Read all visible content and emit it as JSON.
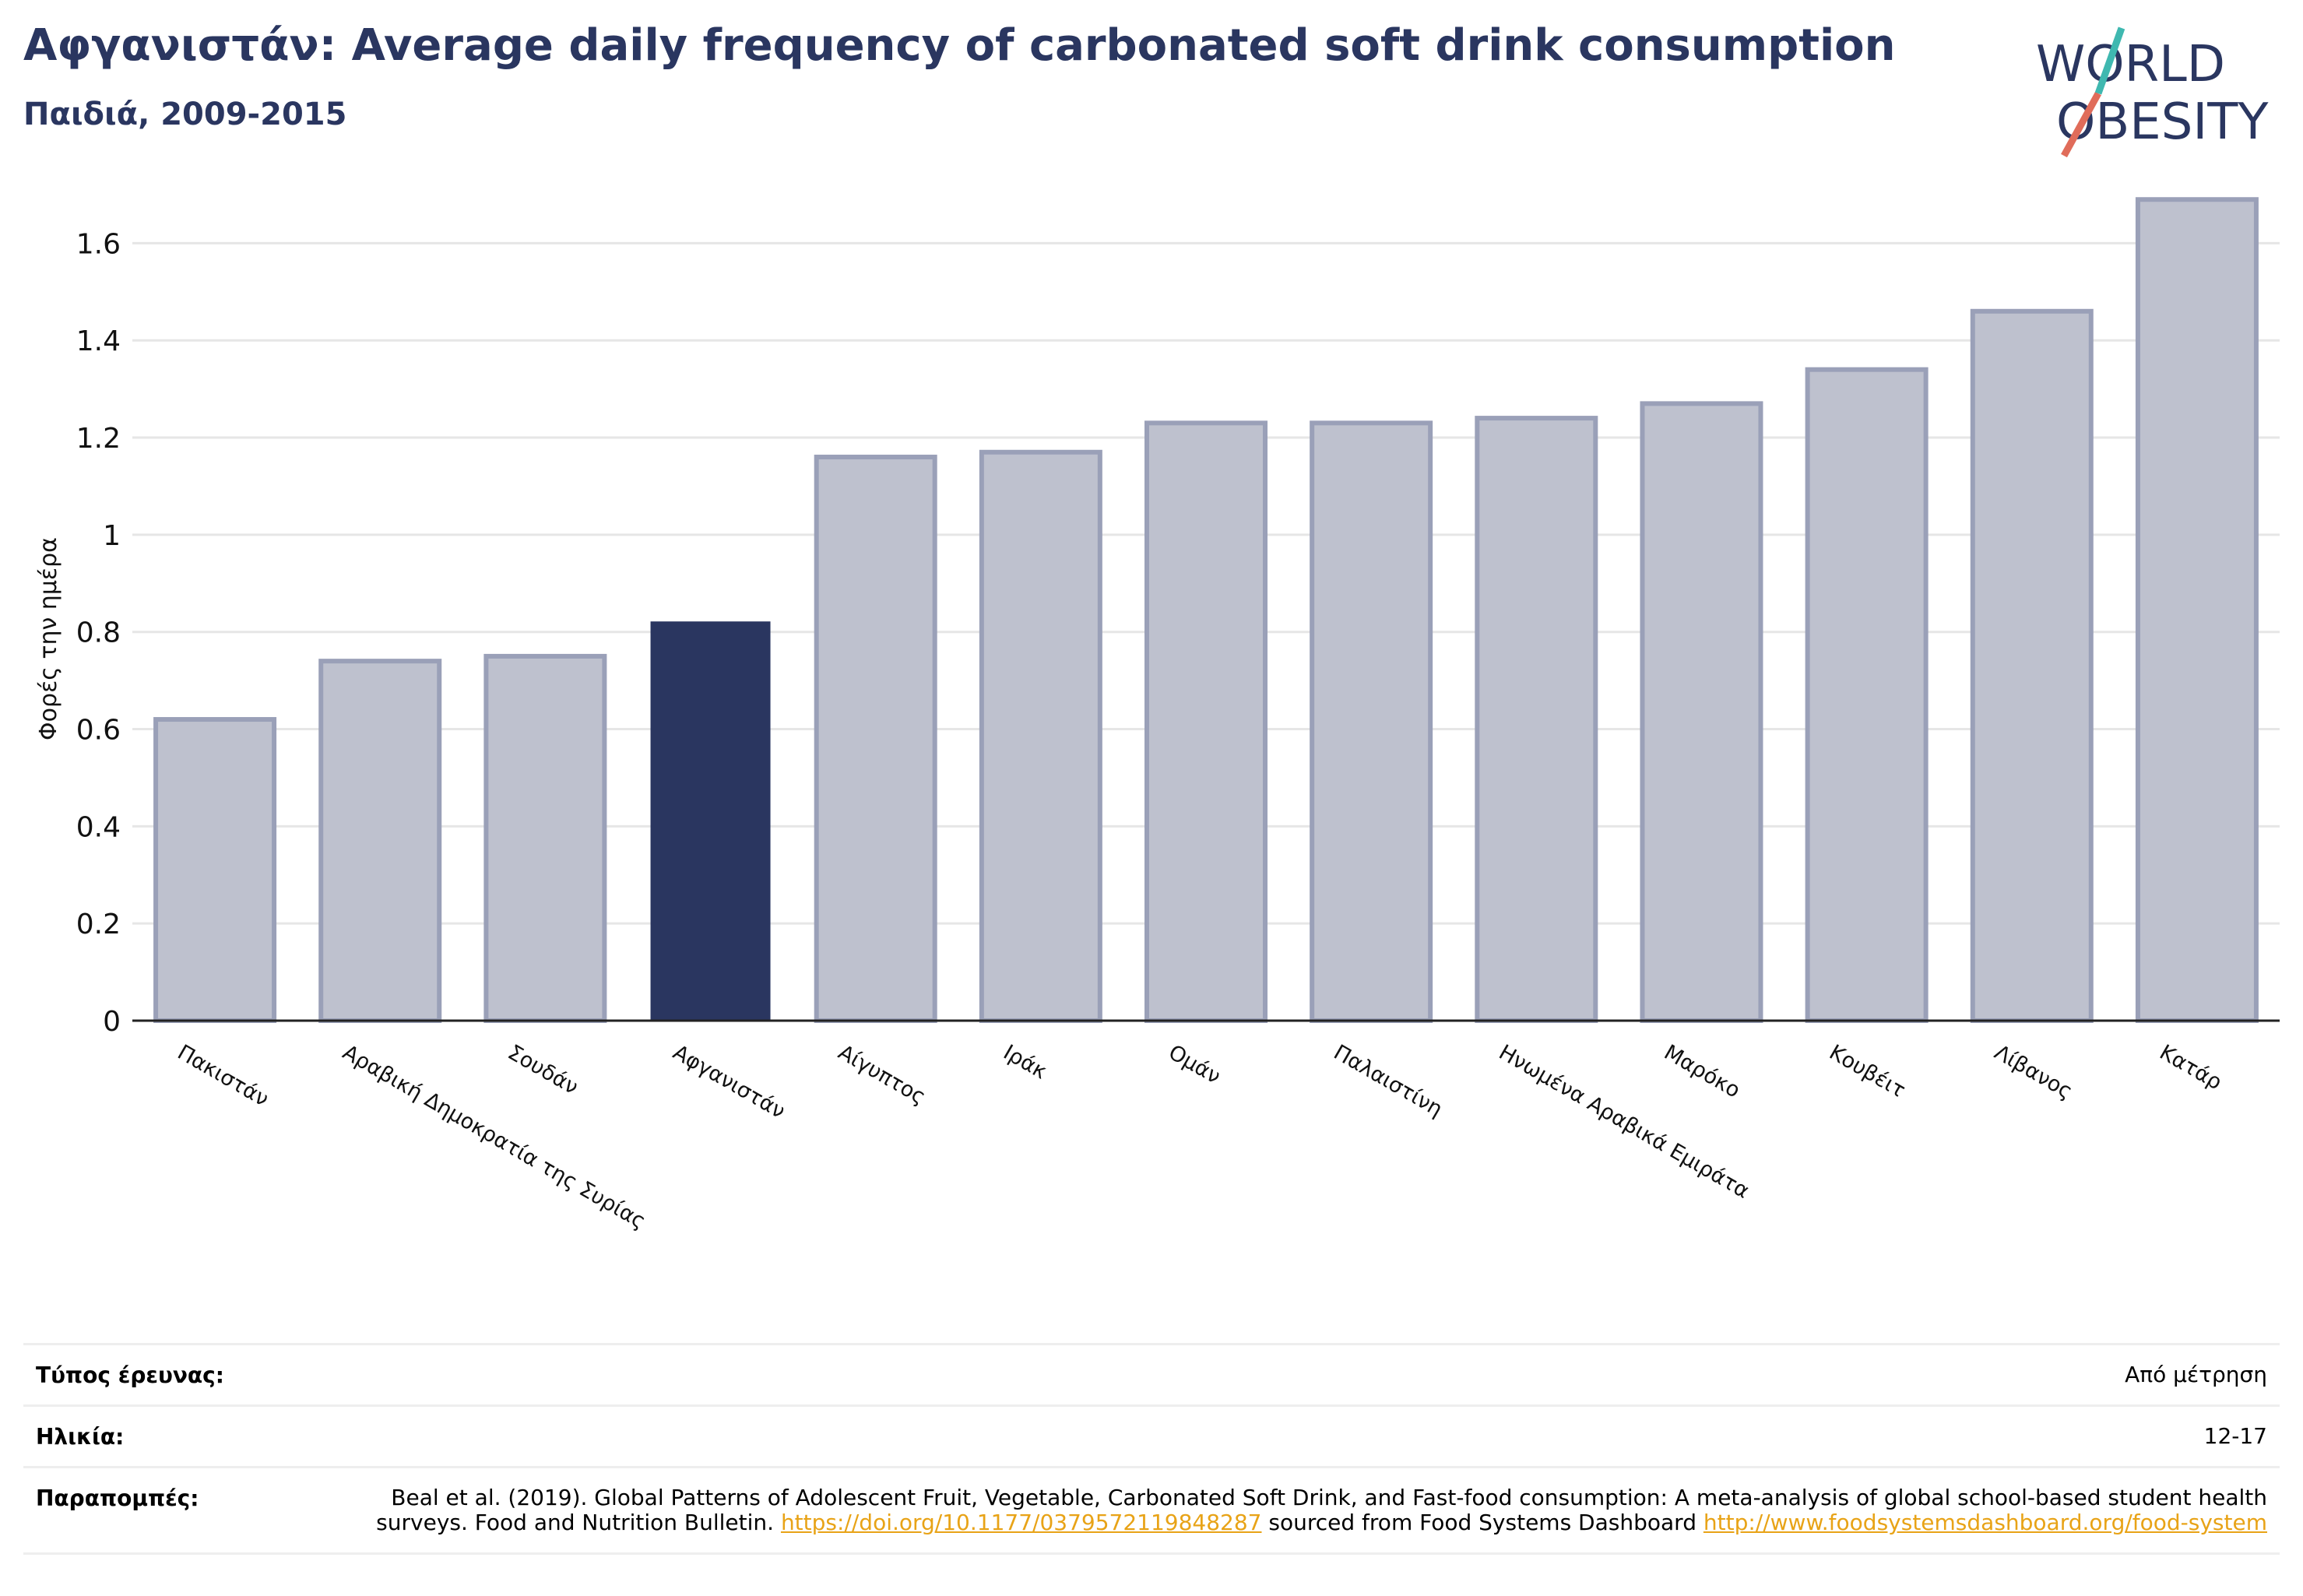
{
  "header": {
    "title": "Αφγανιστάν: Average daily frequency of carbonated soft drink consumption",
    "subtitle": "Παιδιά, 2009-2015"
  },
  "logo": {
    "line1": "WORLD",
    "line2": "OBESITY"
  },
  "colors": {
    "highlight": "#2a3660",
    "bar_fill": "#bec1ce",
    "bar_stroke": "#9aa0b8",
    "title": "#2a3660",
    "link": "#e8a317",
    "logo_teal": "#3fb8b0",
    "logo_coral": "#e06c5a"
  },
  "chart_data": {
    "type": "bar",
    "title": "Αφγανιστάν: Average daily frequency of carbonated soft drink consumption",
    "subtitle": "Παιδιά, 2009-2015",
    "ylabel": "Φορές την ημέρα",
    "ylim": [
      0,
      1.7
    ],
    "yticks": [
      0,
      0.2,
      0.4,
      0.6,
      0.8,
      1,
      1.2,
      1.4,
      1.6
    ],
    "ytick_labels": [
      "0",
      "0.2",
      "0.4",
      "0.6",
      "0.8",
      "1",
      "1.2",
      "1.4",
      "1.6"
    ],
    "grid": true,
    "categories": [
      "Πακιστάν",
      "Αραβική Δημοκρατία της Συρίας",
      "Σουδάν",
      "Αφγανιστάν",
      "Αίγυπτος",
      "Ιράκ",
      "Ομάν",
      "Παλαιστίνη",
      "Ηνωμένα Αραβικά Εμιράτα",
      "Μαρόκο",
      "Κουβέιτ",
      "Λίβανος",
      "Κατάρ"
    ],
    "values": [
      0.62,
      0.74,
      0.75,
      0.82,
      1.16,
      1.17,
      1.23,
      1.23,
      1.24,
      1.27,
      1.34,
      1.46,
      1.69
    ],
    "highlight": "Αφγανιστάν"
  },
  "meta": {
    "survey_type_label": "Τύπος έρευνας:",
    "survey_type_value": "Από μέτρηση",
    "age_label": "Ηλικία:",
    "age_value": "12-17",
    "refs_label": "Παραπομπές:",
    "refs_text1": "Beal et al. (2019). Global Patterns of Adolescent Fruit, Vegetable, Carbonated Soft Drink, and Fast-food consumption: A meta-analysis of global school-based student health surveys. Food and Nutrition Bulletin. ",
    "refs_link1": "https://doi.org/10.1177/0379572119848287",
    "refs_text2": " sourced from Food Systems Dashboard ",
    "refs_link2": "http://www.foodsystemsdashboard.org/food-system"
  }
}
